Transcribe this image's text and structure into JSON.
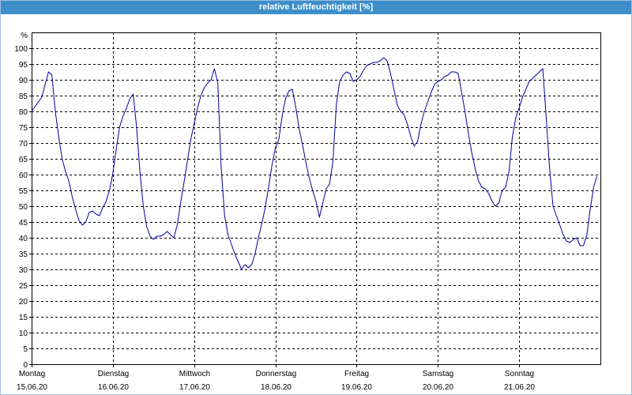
{
  "chart_data": {
    "type": "line",
    "title": "relative Luftfeuchtigkeit [%]",
    "ylabel": "%",
    "ylim": [
      0,
      105
    ],
    "yticks": [
      0,
      5,
      10,
      15,
      20,
      25,
      30,
      35,
      40,
      45,
      50,
      55,
      60,
      65,
      70,
      75,
      80,
      85,
      90,
      95,
      100
    ],
    "grid": true,
    "x_ticks": [
      {
        "day": "Montag",
        "date": "15.06.20"
      },
      {
        "day": "Dienstag",
        "date": "16.06.20"
      },
      {
        "day": "Mittwoch",
        "date": "17.06.20"
      },
      {
        "day": "Donnerstag",
        "date": "18.06.20"
      },
      {
        "day": "Freitag",
        "date": "19.06.20"
      },
      {
        "day": "Samstag",
        "date": "20.06.20"
      },
      {
        "day": "Sonntag",
        "date": "21.06.20"
      }
    ],
    "series": [
      {
        "color": "#0000a0",
        "values_by_day": [
          [
            80,
            81.5,
            83,
            84.5,
            88.5,
            92.5,
            91.5,
            80,
            72,
            65,
            61,
            58,
            53,
            49,
            45.5,
            44,
            45,
            48,
            48.5,
            47.5,
            47,
            49.5,
            51.5,
            55
          ],
          [
            60.5,
            68,
            75,
            78.5,
            81,
            84,
            85.5,
            75,
            61,
            50,
            43.5,
            40.5,
            39.5,
            40.5,
            40.5,
            41,
            42,
            41,
            40,
            44,
            51,
            57.5,
            64,
            71
          ],
          [
            76,
            81,
            85,
            87.5,
            89,
            90,
            93.5,
            89,
            62,
            47,
            41,
            38,
            35,
            32.5,
            30,
            31.5,
            30.5,
            31.5,
            35,
            40,
            44.5,
            49.5,
            56,
            63
          ],
          [
            68.5,
            71,
            78.5,
            84,
            86.5,
            87,
            81.5,
            74.5,
            69.5,
            64,
            59,
            55,
            51.5,
            46.5,
            51,
            55.5,
            57,
            64,
            82,
            89.5,
            91.5,
            92.5,
            92,
            89.5
          ],
          [
            90,
            91,
            93,
            94.5,
            95,
            95.5,
            95.5,
            96,
            97,
            96,
            92,
            87,
            82,
            80,
            79,
            76,
            72,
            69,
            70.5,
            76,
            80,
            83,
            86,
            88.5
          ],
          [
            89.5,
            90,
            91,
            91.5,
            92.5,
            92.5,
            92,
            86,
            80,
            73,
            67,
            62,
            58,
            56,
            55.5,
            54,
            51.5,
            50,
            51,
            55,
            56,
            61,
            72,
            78
          ],
          [
            81,
            84.5,
            87,
            89.5,
            90.5,
            91.5,
            92.5,
            93.5,
            78,
            62,
            50,
            47,
            44,
            41,
            39,
            38.5,
            39.5,
            40,
            37.5,
            37.5,
            41,
            49,
            56,
            59.5
          ]
        ]
      }
    ]
  },
  "colors": {
    "title_bar": "#3d8ec9",
    "title_text": "#ffffff"
  }
}
